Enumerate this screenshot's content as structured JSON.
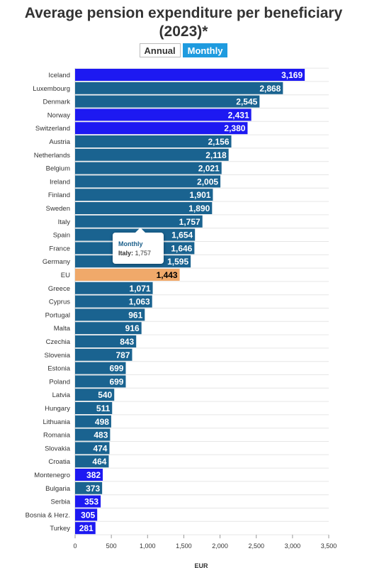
{
  "header": {
    "title_line1": "Average pension expenditure per beneficiary",
    "title_line2": "(2023)*"
  },
  "toggle": {
    "annual_label": "Annual",
    "monthly_label": "Monthly",
    "active": "monthly"
  },
  "colors": {
    "default": "#1a6390",
    "highlight": "#1d19f2",
    "eu": "#f0a96a",
    "grid": "#e6e6e6"
  },
  "tooltip": {
    "title": "Monthly",
    "label": "Italy:",
    "value": "1,757"
  },
  "chart_data": {
    "type": "bar",
    "orientation": "horizontal",
    "categories": [
      "Iceland",
      "Luxembourg",
      "Denmark",
      "Norway",
      "Switzerland",
      "Austria",
      "Netherlands",
      "Belgium",
      "Ireland",
      "Finland",
      "Sweden",
      "Italy",
      "Spain",
      "France",
      "Germany",
      "EU",
      "Greece",
      "Cyprus",
      "Portugal",
      "Malta",
      "Czechia",
      "Slovenia",
      "Estonia",
      "Poland",
      "Latvia",
      "Hungary",
      "Lithuania",
      "Romania",
      "Slovakia",
      "Croatia",
      "Montenegro",
      "Bulgaria",
      "Serbia",
      "Bosnia & Herz.",
      "Turkey"
    ],
    "values": [
      3169,
      2868,
      2545,
      2431,
      2380,
      2156,
      2118,
      2021,
      2005,
      1901,
      1890,
      1757,
      1654,
      1646,
      1595,
      1443,
      1071,
      1063,
      961,
      916,
      843,
      787,
      699,
      699,
      540,
      511,
      498,
      483,
      474,
      464,
      382,
      373,
      353,
      305,
      281
    ],
    "value_labels": [
      "3,169",
      "2,868",
      "2,545",
      "2,431",
      "2,380",
      "2,156",
      "2,118",
      "2,021",
      "2,005",
      "1,901",
      "1,890",
      "1,757",
      "1,654",
      "1,646",
      "1,595",
      "1,443",
      "1,071",
      "1,063",
      "961",
      "916",
      "843",
      "787",
      "699",
      "699",
      "540",
      "511",
      "498",
      "483",
      "474",
      "464",
      "382",
      "373",
      "353",
      "305",
      "281"
    ],
    "highlight": [
      "Iceland",
      "Norway",
      "Switzerland",
      "Montenegro",
      "Serbia",
      "Bosnia & Herz.",
      "Turkey"
    ],
    "aggregate": [
      "EU"
    ],
    "xlabel": "EUR",
    "xlim": [
      0,
      3500
    ],
    "x_ticks": [
      0,
      500,
      1000,
      1500,
      2000,
      2500,
      3000,
      3500
    ],
    "x_tick_labels": [
      "0",
      "500",
      "1,000",
      "1,500",
      "2,000",
      "2,500",
      "3,000",
      "3,500"
    ],
    "grid": true
  }
}
